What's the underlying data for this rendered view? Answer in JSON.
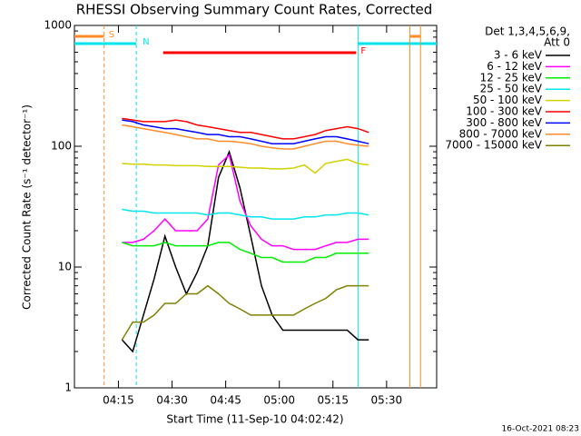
{
  "chart_data": {
    "type": "line",
    "title": "RHESSI Observing Summary Count Rates, Corrected",
    "x_label": "Start Time (11-Sep-10 04:02:42)",
    "y_label": "Corrected Count Rate (s⁻¹ detector⁻¹)",
    "legend_header": [
      "Det 1,3,4,5,6,9,",
      "Att 0"
    ],
    "footer": "16-Oct-2021 08:23",
    "y_log": true,
    "xlim": [
      "04:02:42",
      "05:44"
    ],
    "xticks": [
      "04:15",
      "04:30",
      "04:45",
      "05:00",
      "05:15",
      "05:30"
    ],
    "ylim": [
      1,
      1000
    ],
    "yticks": [
      1,
      10,
      100,
      1000
    ],
    "flags": [
      {
        "label": "S",
        "color": "#ff8c28",
        "start": "04:02:42",
        "end": "04:11",
        "level": 0
      },
      {
        "label": "N",
        "color": "#00e5ee",
        "start": "04:02:42",
        "end": "04:20",
        "level": 1
      },
      {
        "label": "F",
        "color": "#ff0000",
        "start": "04:27:30",
        "end": "05:21:30",
        "level": 2
      },
      {
        "color": "#00e5ee",
        "start": "05:22",
        "end": "05:44",
        "level": 1
      },
      {
        "color": "#ff8c28",
        "start": "05:36:30",
        "end": "05:39:30",
        "level": 0
      }
    ],
    "x": [
      "04:16",
      "04:19",
      "04:22",
      "04:25",
      "04:28",
      "04:31",
      "04:34",
      "04:37",
      "04:40",
      "04:43",
      "04:46",
      "04:49",
      "04:52",
      "04:55",
      "04:58",
      "05:01",
      "05:04",
      "05:07",
      "05:10",
      "05:13",
      "05:16",
      "05:19",
      "05:22",
      "05:25"
    ],
    "series": [
      {
        "name": "3 - 6 keV",
        "color": "#000000",
        "values": [
          2.5,
          2,
          4,
          8,
          18,
          10,
          6,
          9,
          15,
          55,
          90,
          45,
          18,
          7,
          4,
          3,
          3,
          3,
          3,
          3,
          3,
          3,
          2.5,
          2.5
        ]
      },
      {
        "name": "6 - 12 keV",
        "color": "#ff00ff",
        "values": [
          16,
          16,
          17,
          20,
          25,
          20,
          20,
          20,
          25,
          70,
          85,
          35,
          22,
          17,
          15,
          15,
          14,
          14,
          14,
          15,
          16,
          16,
          17,
          17
        ]
      },
      {
        "name": "12 - 25 keV",
        "color": "#00ee00",
        "values": [
          16,
          15,
          15,
          15,
          16,
          15,
          15,
          15,
          15,
          16,
          16,
          14,
          13,
          12,
          12,
          11,
          11,
          11,
          12,
          12,
          13,
          13,
          13,
          13
        ]
      },
      {
        "name": "25 - 50 keV",
        "color": "#00e5ee",
        "values": [
          30,
          29,
          29,
          28,
          28,
          28,
          28,
          28,
          27,
          28,
          28,
          27,
          26,
          26,
          25,
          25,
          25,
          26,
          26,
          27,
          27,
          28,
          28,
          27
        ]
      },
      {
        "name": "50 - 100 keV",
        "color": "#d2d200",
        "values": [
          72,
          71,
          71,
          70,
          70,
          69,
          69,
          69,
          68,
          68,
          68,
          67,
          66,
          66,
          65,
          65,
          66,
          70,
          60,
          72,
          75,
          78,
          72,
          70
        ]
      },
      {
        "name": "100 - 300 keV",
        "color": "#ff0000",
        "values": [
          170,
          165,
          160,
          160,
          160,
          165,
          160,
          150,
          145,
          140,
          135,
          130,
          130,
          125,
          120,
          115,
          115,
          120,
          125,
          135,
          140,
          145,
          140,
          130
        ]
      },
      {
        "name": "300 - 800 keV",
        "color": "#0000ff",
        "values": [
          165,
          160,
          150,
          145,
          140,
          140,
          135,
          130,
          125,
          125,
          120,
          120,
          115,
          110,
          105,
          105,
          105,
          110,
          115,
          120,
          120,
          115,
          110,
          105
        ]
      },
      {
        "name": "800 - 7000 keV",
        "color": "#ff8c28",
        "values": [
          150,
          145,
          140,
          135,
          130,
          125,
          120,
          115,
          115,
          110,
          110,
          108,
          105,
          100,
          97,
          95,
          95,
          100,
          105,
          110,
          110,
          105,
          102,
          100
        ]
      },
      {
        "name": "7000 - 15000 keV",
        "color": "#808000",
        "values": [
          2.5,
          3.5,
          3.5,
          4,
          5,
          5,
          6,
          6,
          7,
          6,
          5,
          4.5,
          4,
          4,
          4,
          4,
          4,
          4.5,
          5,
          5.5,
          6.5,
          7,
          7,
          7
        ]
      }
    ]
  }
}
